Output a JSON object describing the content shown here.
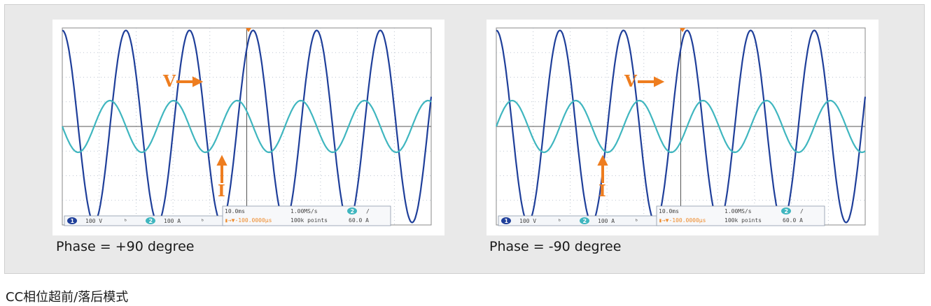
{
  "caption": "CC相位超前/落后模式",
  "colors": {
    "voltage": "#1f3f9a",
    "current": "#3fb6bf",
    "annotation": "#ee7d1f",
    "grid": "#aab4c2",
    "frame_bg": "#e9e9e9"
  },
  "panels": [
    {
      "label": "Phase = +90 degree",
      "annotations": {
        "voltage": "V",
        "current": "I"
      },
      "status": {
        "ch1_badge": "1",
        "ch1_scale": "100 V",
        "ch2_badge": "2",
        "ch2_scale": "100 A",
        "timebase": "10.0ms",
        "sample_rate": "1.00MS/s",
        "trigger_badge": "2",
        "trigger_slope": "/",
        "position": "▮→▼-100.0000μs",
        "record_length": "100k points",
        "trigger_level": "60.0 A"
      }
    },
    {
      "label": "Phase = -90 degree",
      "annotations": {
        "voltage": "V",
        "current": "I"
      },
      "status": {
        "ch1_badge": "1",
        "ch1_scale": "100 V",
        "ch2_badge": "2",
        "ch2_scale": "100 A",
        "timebase": "10.0ms",
        "sample_rate": "1.00MS/s",
        "trigger_badge": "2",
        "trigger_slope": "/",
        "position": "▮→▼-100.0000μs",
        "record_length": "100k points",
        "trigger_level": "60.0 A"
      }
    }
  ],
  "chart_data": [
    {
      "type": "line",
      "title": "Phase = +90 degree",
      "x_divisions": 10,
      "y_divisions": 8,
      "series": [
        {
          "name": "V",
          "amplitude_div": 3.9,
          "cycles_on_screen": 5.8,
          "phase_deg": 0
        },
        {
          "name": "I",
          "amplitude_div": 1.05,
          "cycles_on_screen": 5.8,
          "phase_deg": 90
        }
      ]
    },
    {
      "type": "line",
      "title": "Phase = -90 degree",
      "x_divisions": 10,
      "y_divisions": 8,
      "series": [
        {
          "name": "V",
          "amplitude_div": 3.9,
          "cycles_on_screen": 5.8,
          "phase_deg": 0
        },
        {
          "name": "I",
          "amplitude_div": 1.05,
          "cycles_on_screen": 5.8,
          "phase_deg": -90
        }
      ]
    }
  ]
}
